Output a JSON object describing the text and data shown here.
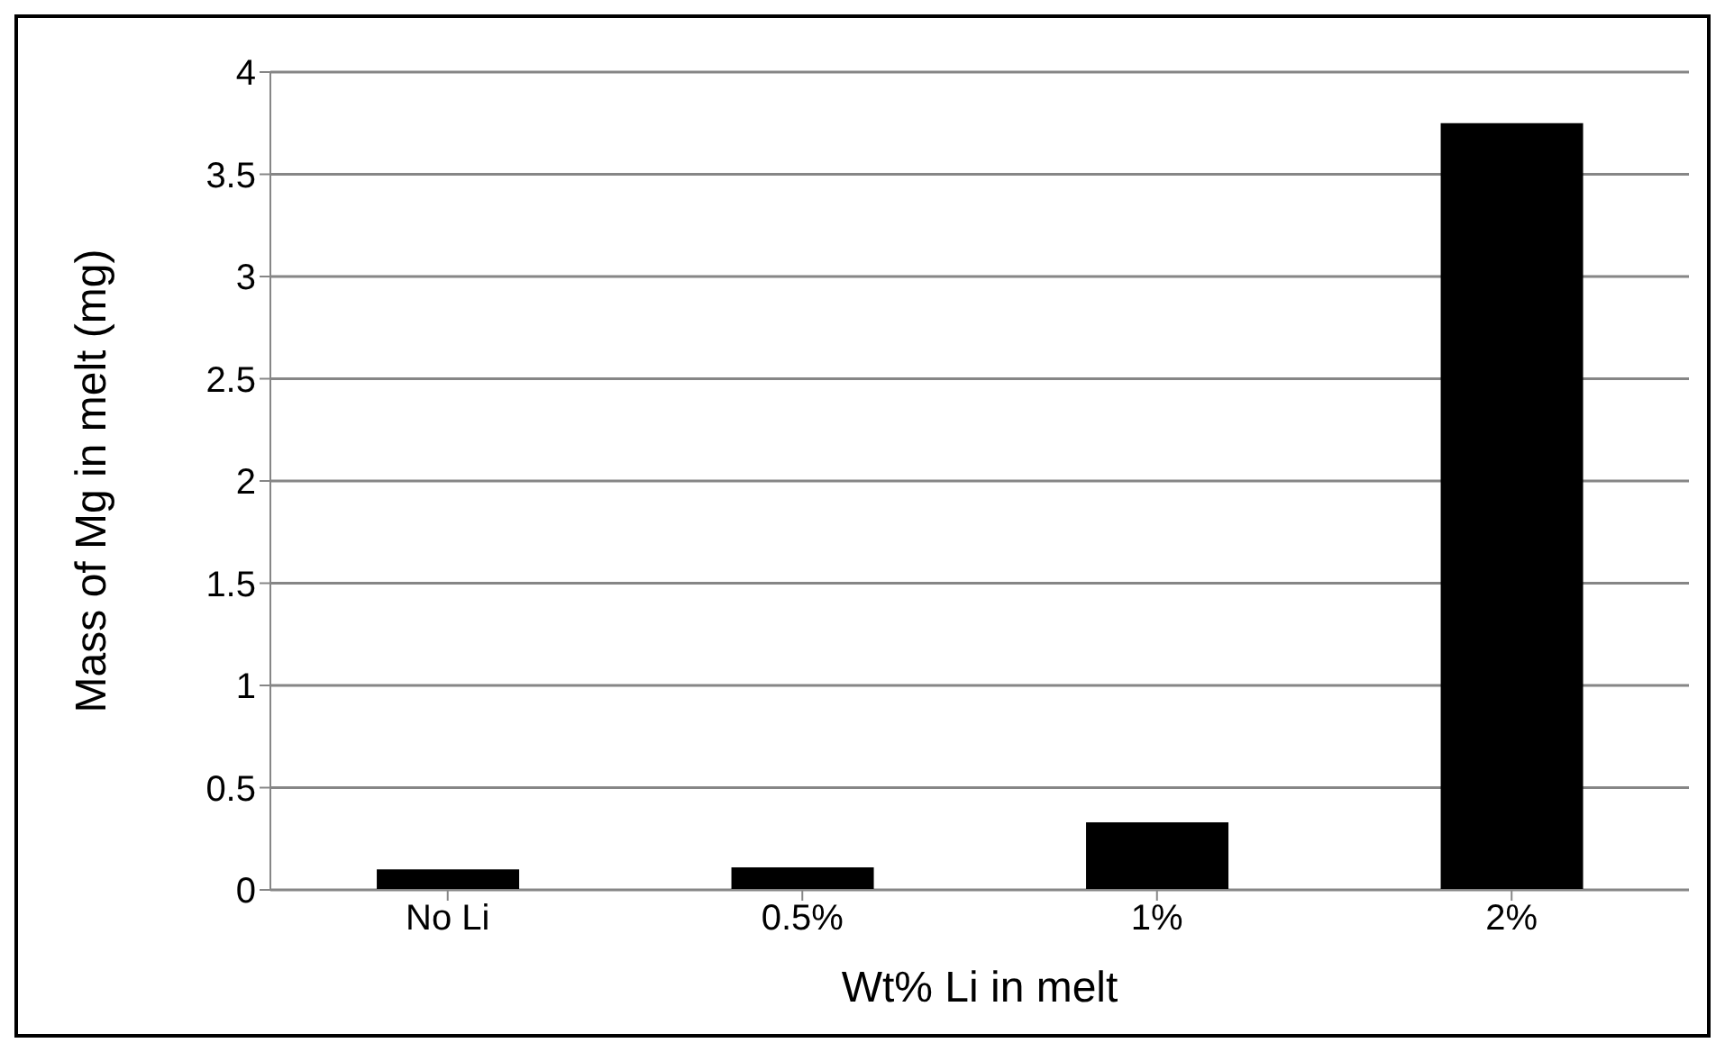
{
  "chart_data": {
    "type": "bar",
    "xlabel": "Wt% Li in melt",
    "ylabel": "Mass of Mg in melt (mg)",
    "categories": [
      "No Li",
      "0.5%",
      "1%",
      "2%"
    ],
    "values": [
      0.1,
      0.11,
      0.33,
      3.75
    ],
    "color": "#000000",
    "ylim": [
      0,
      4
    ],
    "yticks": [
      0,
      0.5,
      1,
      1.5,
      2,
      2.5,
      3,
      3.5,
      4
    ],
    "grid": "y",
    "legend": false
  }
}
